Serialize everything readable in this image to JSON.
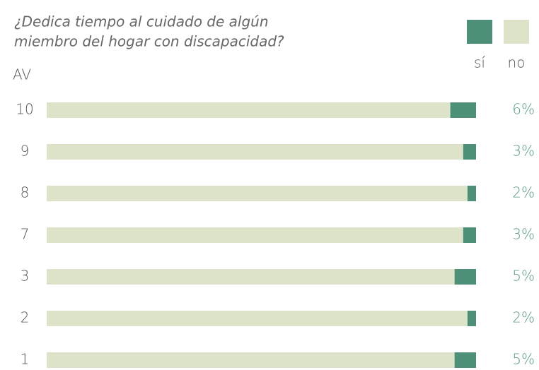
{
  "chart_data": {
    "type": "bar",
    "orientation": "horizontal",
    "stacked": true,
    "title": [
      "¿Dedica tiempo al cuidado de algún",
      "miembro del hogar con discapacidad?"
    ],
    "y_label": "AV",
    "categories": [
      "10",
      "9",
      "8",
      "7",
      "3",
      "2",
      "1"
    ],
    "series": [
      {
        "name": "sí",
        "color": "#4e8f78",
        "values": [
          6,
          3,
          2,
          3,
          5,
          2,
          5
        ],
        "value_labels": [
          "6%",
          "3%",
          "2%",
          "3%",
          "5%",
          "2%",
          "5%"
        ]
      },
      {
        "name": "no",
        "color": "#dce3c9",
        "values": [
          94,
          97,
          98,
          97,
          95,
          98,
          95
        ]
      }
    ],
    "xlim": [
      0,
      100
    ]
  }
}
